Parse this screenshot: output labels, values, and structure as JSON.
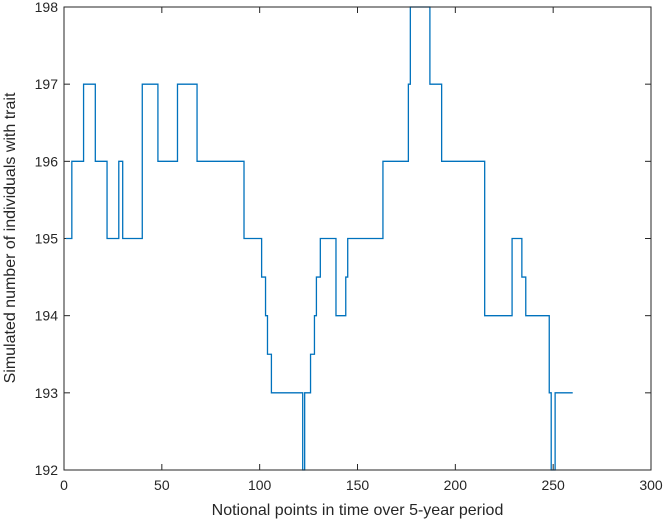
{
  "chart_data": {
    "type": "line",
    "title": "",
    "xlabel": "Notional points in time over 5-year period",
    "ylabel": "Simulated number of individuals with trait",
    "xlim": [
      0,
      300
    ],
    "ylim": [
      192,
      198
    ],
    "xticks": [
      0,
      50,
      100,
      150,
      200,
      250,
      300
    ],
    "xtick_labels": [
      "0",
      "50",
      "100",
      "150",
      "200",
      "250",
      "300"
    ],
    "yticks": [
      192,
      193,
      194,
      195,
      196,
      197,
      198
    ],
    "ytick_labels": [
      "192",
      "193",
      "194",
      "195",
      "196",
      "197",
      "198"
    ],
    "grid": false,
    "box": true,
    "series": [
      {
        "color": "#0072BD",
        "step": true,
        "x": [
          1,
          4,
          10,
          16,
          22,
          28,
          30,
          32,
          40,
          48,
          58,
          68,
          92,
          101,
          103,
          104,
          106,
          122,
          123,
          126,
          128,
          129,
          131,
          139,
          144,
          145,
          163,
          176,
          177,
          187,
          193,
          215,
          229,
          234,
          236,
          248,
          249,
          251,
          260
        ],
        "y": [
          195,
          196,
          197,
          196,
          195,
          196,
          195,
          195,
          197,
          196,
          197,
          196,
          195,
          194.5,
          194,
          193.5,
          193,
          192,
          193,
          193.5,
          194,
          194.5,
          195,
          194,
          194.5,
          195,
          196,
          197,
          198,
          197,
          196,
          194,
          195,
          194.5,
          194,
          193,
          192,
          193,
          193
        ]
      }
    ]
  }
}
